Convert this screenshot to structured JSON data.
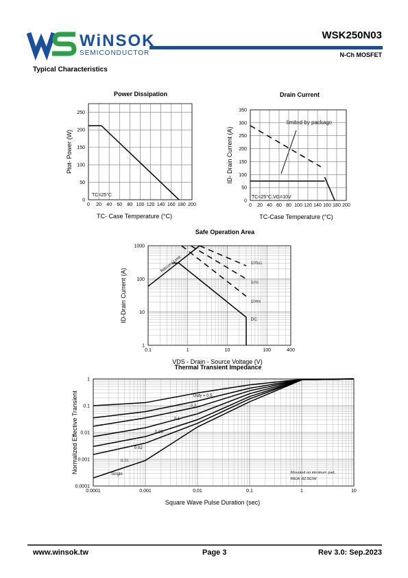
{
  "header": {
    "brand": "WiNSOK",
    "brand_sub": "SEMICONDUCTOR",
    "part": "WSK250N03",
    "device": "N-Ch MOSFET",
    "section": "Typical Characteristics"
  },
  "chart_data": [
    {
      "type": "line",
      "title": "Power Dissipation",
      "x_label": "TC- Case Temperature (°C)",
      "y_label": "Ptot- Power (W)",
      "annotations": [
        "TC=25°C"
      ],
      "xlim": [
        0,
        200
      ],
      "xticks": [
        0,
        20,
        40,
        60,
        80,
        100,
        120,
        140,
        160,
        180,
        200
      ],
      "ylim": [
        0,
        275
      ],
      "yticks": [
        0,
        50,
        100,
        150,
        200,
        250
      ],
      "grid": true,
      "series": [
        {
          "color": "#000000",
          "x": [
            0,
            25,
            175
          ],
          "values": [
            212,
            212,
            0
          ]
        }
      ]
    },
    {
      "type": "line",
      "title": "Drain Current",
      "x_label": "TC-Case Temperature (°C)",
      "y_label": "ID- Drain Current (A)",
      "annotations": [
        "limited by package",
        "TC=25°C,VG=10V"
      ],
      "xlim": [
        0,
        200
      ],
      "xticks": [
        0,
        20,
        40,
        60,
        80,
        100,
        120,
        140,
        160,
        180,
        200
      ],
      "ylim": [
        0,
        350
      ],
      "yticks": [
        0,
        50,
        100,
        150,
        200,
        250,
        300,
        350
      ],
      "grid": true,
      "series": [
        {
          "color": "#000000",
          "style": "dashed",
          "x": [
            0,
            147
          ],
          "values": [
            289,
            130
          ]
        },
        {
          "color": "#000000",
          "x": [
            0,
            155
          ],
          "values": [
            75,
            75
          ]
        },
        {
          "color": "#000000",
          "x": [
            155,
            176
          ],
          "values": [
            90,
            0
          ]
        }
      ]
    },
    {
      "type": "line",
      "title": "Safe Operation Area",
      "x_label": "VDS - Drain - Source Voltage (V)",
      "y_label": "ID-Drain Current (A)",
      "annotations": [
        "Rds(on) Limit",
        "100us",
        "1ms",
        "10ms",
        "DC"
      ],
      "log_x": true,
      "log_y": true,
      "xlim": [
        0.1,
        400
      ],
      "xticks": [
        0.1,
        1,
        10,
        100,
        400
      ],
      "ylim": [
        1,
        1000
      ],
      "yticks": [
        1,
        10,
        100,
        1000
      ],
      "grid": true,
      "series": [
        {
          "color": "#000000",
          "x": [
            0.1,
            2
          ],
          "values": [
            60,
            1000
          ]
        },
        {
          "color": "#000000",
          "style": "dashed",
          "x": [
            2,
            30
          ],
          "values": [
            1000,
            250
          ]
        },
        {
          "color": "#000000",
          "style": "dashed",
          "x": [
            1.2,
            30
          ],
          "values": [
            1000,
            100
          ]
        },
        {
          "color": "#000000",
          "style": "dashed",
          "x": [
            0.7,
            30
          ],
          "values": [
            1000,
            30
          ]
        },
        {
          "color": "#000000",
          "x": [
            0.4,
            0.6,
            30,
            30
          ],
          "values": [
            300,
            300,
            7,
            1
          ]
        }
      ]
    },
    {
      "type": "line",
      "title": "Thermal Transient Impedance",
      "x_label": "Square Wave Pulse Duration (sec)",
      "y_label": "Normalized Effective Transient",
      "annotations": [
        "Duty = 0.5",
        "0.2",
        "0.1",
        "0.05",
        "0.02",
        "0.01",
        "Single",
        "Mounted on minimum pad,",
        "RθJA :62.5C/W"
      ],
      "log_x": true,
      "log_y": true,
      "xlim": [
        0.0001,
        10
      ],
      "xticks": [
        0.0001,
        0.001,
        0.01,
        0.1,
        1,
        10
      ],
      "ylim": [
        0.0001,
        1
      ],
      "yticks": [
        0.0001,
        0.001,
        0.01,
        0.1,
        1
      ],
      "grid": true,
      "series": [
        {
          "color": "#000000",
          "x": [
            0.0001,
            0.001,
            0.01,
            0.1,
            1,
            10
          ],
          "values": [
            0.1,
            0.13,
            0.3,
            0.6,
            0.97,
            1
          ]
        },
        {
          "color": "#000000",
          "x": [
            0.0001,
            0.001,
            0.01,
            0.1,
            1,
            10
          ],
          "values": [
            0.035,
            0.06,
            0.15,
            0.45,
            0.96,
            1
          ]
        },
        {
          "color": "#000000",
          "x": [
            0.0001,
            0.001,
            0.01,
            0.1,
            1,
            10
          ],
          "values": [
            0.017,
            0.035,
            0.09,
            0.36,
            0.95,
            1
          ]
        },
        {
          "color": "#000000",
          "x": [
            0.0001,
            0.001,
            0.01,
            0.1,
            1,
            10
          ],
          "values": [
            0.007,
            0.015,
            0.05,
            0.28,
            0.94,
            1
          ]
        },
        {
          "color": "#000000",
          "x": [
            0.0001,
            0.001,
            0.01,
            0.1,
            1,
            10
          ],
          "values": [
            0.003,
            0.007,
            0.03,
            0.22,
            0.93,
            1
          ]
        },
        {
          "color": "#000000",
          "x": [
            0.0001,
            0.001,
            0.01,
            0.1,
            1,
            10
          ],
          "values": [
            0.0015,
            0.004,
            0.022,
            0.18,
            0.93,
            1
          ]
        },
        {
          "color": "#000000",
          "x": [
            0.0001,
            0.001,
            0.01,
            0.1,
            1,
            10
          ],
          "values": [
            0.0002,
            0.0009,
            0.016,
            0.14,
            0.92,
            1
          ]
        }
      ]
    }
  ],
  "footer": {
    "site": "www.winsok.tw",
    "page": "Page 3",
    "rev": "Rev 3.0: Sep.2023"
  }
}
